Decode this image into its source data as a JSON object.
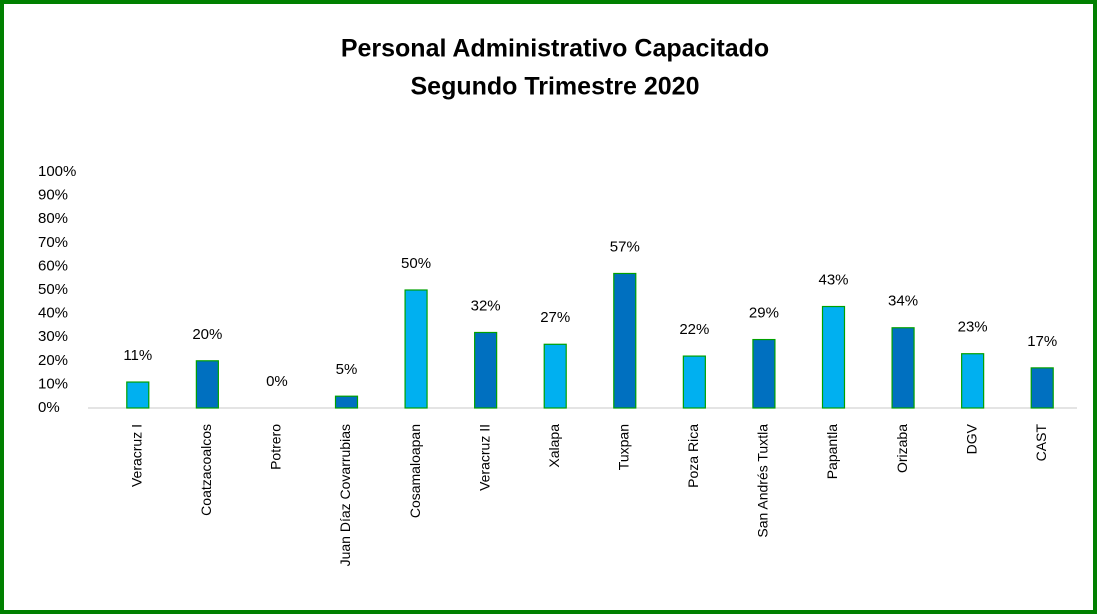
{
  "chart_data": {
    "type": "bar",
    "title": [
      "Personal Administrativo  Capacitado",
      "Segundo Trimestre 2020"
    ],
    "categories": [
      "Veracruz I",
      "Coatzacoalcos",
      "Potrero",
      "Juan Díaz Covarrubias",
      "Cosamaloapan",
      "Veracruz II",
      "Xalapa",
      "Tuxpan",
      "Poza Rica",
      "San Andrés Tuxtla",
      "Papantla",
      "Orizaba",
      "DGV",
      "CAST"
    ],
    "values": [
      11,
      20,
      0,
      5,
      50,
      32,
      27,
      57,
      22,
      29,
      43,
      34,
      23,
      17
    ],
    "value_labels": [
      "11%",
      "20%",
      "0%",
      "5%",
      "50%",
      "32%",
      "27%",
      "57%",
      "22%",
      "29%",
      "43%",
      "34%",
      "23%",
      "17%"
    ],
    "colors": [
      "#00b0f0",
      "#0070c0",
      "#00b0f0",
      "#0070c0",
      "#00b0f0",
      "#0070c0",
      "#00b0f0",
      "#0070c0",
      "#00b0f0",
      "#0070c0",
      "#00b0f0",
      "#0070c0",
      "#00b0f0",
      "#0070c0"
    ],
    "bar_outline": "#00a000",
    "ylim": [
      0,
      100
    ],
    "yticks": [
      {
        "value": 0,
        "label": "0%"
      },
      {
        "value": 10,
        "label": "10%"
      },
      {
        "value": 20,
        "label": "20%"
      },
      {
        "value": 30,
        "label": "30%"
      },
      {
        "value": 40,
        "label": "40%"
      },
      {
        "value": 50,
        "label": "50%"
      },
      {
        "value": 60,
        "label": "60%"
      },
      {
        "value": 70,
        "label": "70%"
      },
      {
        "value": 80,
        "label": "80%"
      },
      {
        "value": 90,
        "label": "90%"
      },
      {
        "value": 100,
        "label": "100%"
      }
    ],
    "grid": false
  }
}
